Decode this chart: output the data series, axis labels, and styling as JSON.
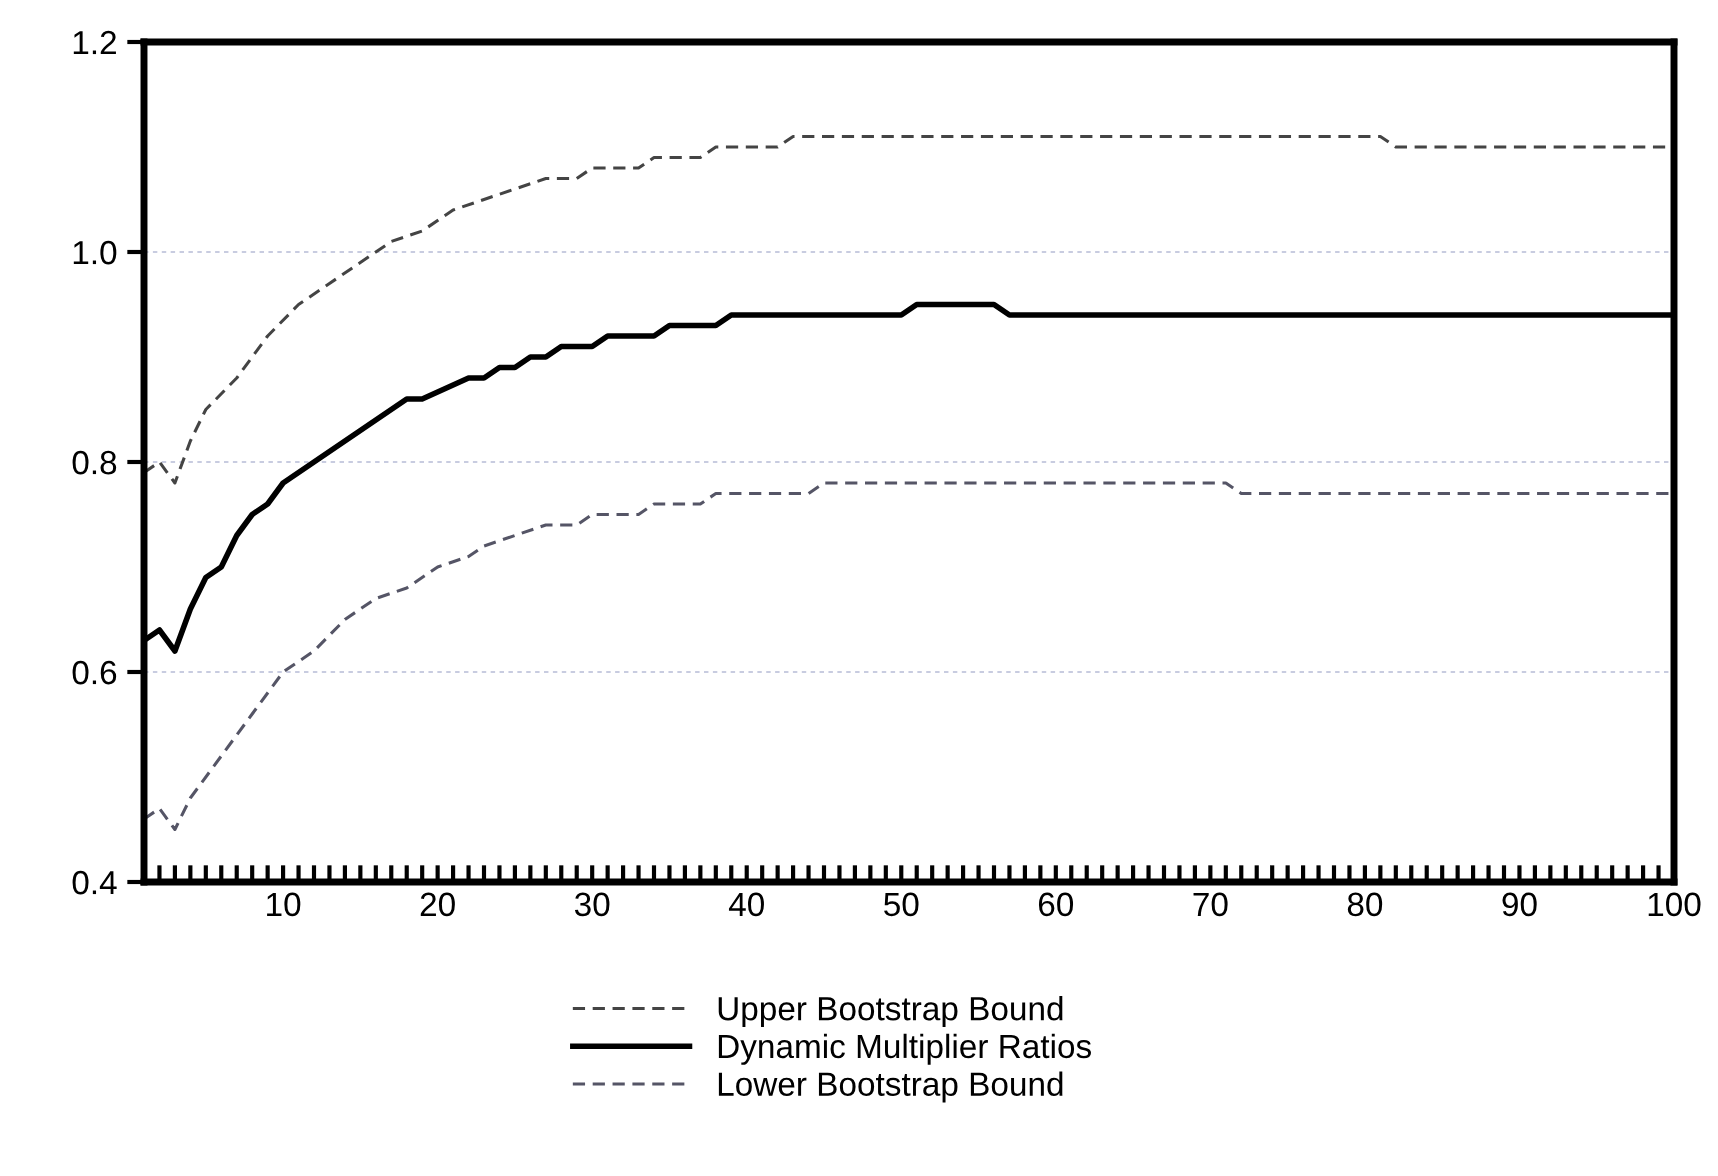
{
  "chart_data": {
    "type": "line",
    "series": [
      {
        "name": "Upper Bootstrap Bound",
        "color": "#444444",
        "line_style": "dashed",
        "x": [
          1,
          2,
          3,
          4,
          5,
          7,
          9,
          11,
          13,
          15,
          17,
          19,
          21,
          23,
          25,
          27,
          29,
          30,
          33,
          34,
          37,
          38,
          42,
          43,
          81,
          82,
          100
        ],
        "values": [
          0.79,
          0.8,
          0.78,
          0.82,
          0.85,
          0.88,
          0.92,
          0.95,
          0.97,
          0.99,
          1.01,
          1.02,
          1.04,
          1.05,
          1.06,
          1.07,
          1.07,
          1.08,
          1.08,
          1.09,
          1.09,
          1.1,
          1.1,
          1.11,
          1.11,
          1.1,
          1.1
        ]
      },
      {
        "name": "Dynamic Multiplier Ratios",
        "color": "#000000",
        "line_style": "solid",
        "x": [
          1,
          2,
          3,
          4,
          5,
          6,
          7,
          8,
          9,
          10,
          12,
          15,
          18,
          19,
          22,
          23,
          24,
          25,
          26,
          27,
          28,
          30,
          31,
          34,
          35,
          38,
          39,
          50,
          51,
          56,
          57,
          100
        ],
        "values": [
          0.63,
          0.64,
          0.62,
          0.66,
          0.69,
          0.7,
          0.73,
          0.75,
          0.76,
          0.78,
          0.8,
          0.83,
          0.86,
          0.86,
          0.88,
          0.88,
          0.89,
          0.89,
          0.9,
          0.9,
          0.91,
          0.91,
          0.92,
          0.92,
          0.93,
          0.93,
          0.94,
          0.94,
          0.95,
          0.95,
          0.94,
          0.94
        ]
      },
      {
        "name": "Lower Bootstrap Bound",
        "color": "#555566",
        "line_style": "dashed",
        "x": [
          1,
          2,
          3,
          4,
          6,
          8,
          10,
          12,
          14,
          16,
          18,
          20,
          22,
          23,
          25,
          27,
          29,
          30,
          33,
          34,
          37,
          38,
          44,
          45,
          71,
          72,
          100
        ],
        "values": [
          0.46,
          0.47,
          0.45,
          0.48,
          0.52,
          0.56,
          0.6,
          0.62,
          0.65,
          0.67,
          0.68,
          0.7,
          0.71,
          0.72,
          0.73,
          0.74,
          0.74,
          0.75,
          0.75,
          0.76,
          0.76,
          0.77,
          0.77,
          0.78,
          0.78,
          0.77,
          0.77
        ]
      }
    ],
    "xlim": [
      1,
      100
    ],
    "xticks": [
      {
        "value": 2,
        "label": null
      },
      {
        "value": 3,
        "label": null
      },
      {
        "value": 4,
        "label": null
      },
      {
        "value": 5,
        "label": null
      },
      {
        "value": 6,
        "label": null
      },
      {
        "value": 7,
        "label": null
      },
      {
        "value": 8,
        "label": null
      },
      {
        "value": 9,
        "label": null
      },
      10,
      {
        "value": 11,
        "label": null
      },
      {
        "value": 12,
        "label": null
      },
      {
        "value": 13,
        "label": null
      },
      {
        "value": 14,
        "label": null
      },
      {
        "value": 15,
        "label": null
      },
      {
        "value": 16,
        "label": null
      },
      {
        "value": 17,
        "label": null
      },
      {
        "value": 18,
        "label": null
      },
      {
        "value": 19,
        "label": null
      },
      20,
      {
        "value": 21,
        "label": null
      },
      {
        "value": 22,
        "label": null
      },
      {
        "value": 23,
        "label": null
      },
      {
        "value": 24,
        "label": null
      },
      {
        "value": 25,
        "label": null
      },
      {
        "value": 26,
        "label": null
      },
      {
        "value": 27,
        "label": null
      },
      {
        "value": 28,
        "label": null
      },
      {
        "value": 29,
        "label": null
      },
      30,
      {
        "value": 31,
        "label": null
      },
      {
        "value": 32,
        "label": null
      },
      {
        "value": 33,
        "label": null
      },
      {
        "value": 34,
        "label": null
      },
      {
        "value": 35,
        "label": null
      },
      {
        "value": 36,
        "label": null
      },
      {
        "value": 37,
        "label": null
      },
      {
        "value": 38,
        "label": null
      },
      {
        "value": 39,
        "label": null
      },
      40,
      {
        "value": 41,
        "label": null
      },
      {
        "value": 42,
        "label": null
      },
      {
        "value": 43,
        "label": null
      },
      {
        "value": 44,
        "label": null
      },
      {
        "value": 45,
        "label": null
      },
      {
        "value": 46,
        "label": null
      },
      {
        "value": 47,
        "label": null
      },
      {
        "value": 48,
        "label": null
      },
      {
        "value": 49,
        "label": null
      },
      50,
      {
        "value": 51,
        "label": null
      },
      {
        "value": 52,
        "label": null
      },
      {
        "value": 53,
        "label": null
      },
      {
        "value": 54,
        "label": null
      },
      {
        "value": 55,
        "label": null
      },
      {
        "value": 56,
        "label": null
      },
      {
        "value": 57,
        "label": null
      },
      {
        "value": 58,
        "label": null
      },
      {
        "value": 59,
        "label": null
      },
      60,
      {
        "value": 61,
        "label": null
      },
      {
        "value": 62,
        "label": null
      },
      {
        "value": 63,
        "label": null
      },
      {
        "value": 64,
        "label": null
      },
      {
        "value": 65,
        "label": null
      },
      {
        "value": 66,
        "label": null
      },
      {
        "value": 67,
        "label": null
      },
      {
        "value": 68,
        "label": null
      },
      {
        "value": 69,
        "label": null
      },
      70,
      {
        "value": 71,
        "label": null
      },
      {
        "value": 72,
        "label": null
      },
      {
        "value": 73,
        "label": null
      },
      {
        "value": 74,
        "label": null
      },
      {
        "value": 75,
        "label": null
      },
      {
        "value": 76,
        "label": null
      },
      {
        "value": 77,
        "label": null
      },
      {
        "value": 78,
        "label": null
      },
      {
        "value": 79,
        "label": null
      },
      80,
      {
        "value": 81,
        "label": null
      },
      {
        "value": 82,
        "label": null
      },
      {
        "value": 83,
        "label": null
      },
      {
        "value": 84,
        "label": null
      },
      {
        "value": 85,
        "label": null
      },
      {
        "value": 86,
        "label": null
      },
      {
        "value": 87,
        "label": null
      },
      {
        "value": 88,
        "label": null
      },
      {
        "value": 89,
        "label": null
      },
      90,
      {
        "value": 91,
        "label": null
      },
      {
        "value": 92,
        "label": null
      },
      {
        "value": 93,
        "label": null
      },
      {
        "value": 94,
        "label": null
      },
      {
        "value": 95,
        "label": null
      },
      {
        "value": 96,
        "label": null
      },
      {
        "value": 97,
        "label": null
      },
      {
        "value": 98,
        "label": null
      },
      {
        "value": 99,
        "label": null
      },
      100
    ],
    "ylim": [
      0.4,
      1.2
    ],
    "yticks": [
      {
        "value": 0.4,
        "label": "0.4"
      },
      {
        "value": 0.6,
        "label": "0.6"
      },
      {
        "value": 0.8,
        "label": "0.8"
      },
      {
        "value": 1.0,
        "label": "1.0"
      },
      {
        "value": 1.2,
        "label": "1.2"
      }
    ],
    "grid": "y",
    "legend": "bottom",
    "marker": "none"
  }
}
